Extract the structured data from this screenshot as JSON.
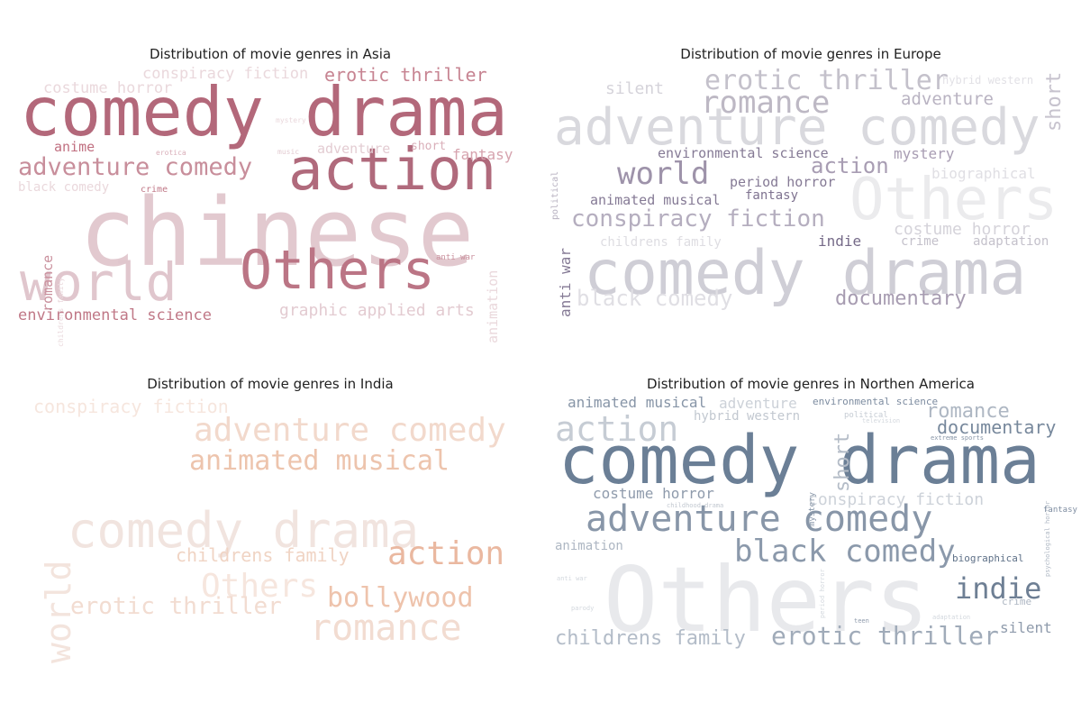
{
  "chart_data": [
    {
      "type": "wordcloud",
      "title": "Distribution of movie genres in Asia",
      "colors": {
        "base": "#b05a6e"
      },
      "words": [
        {
          "text": "chinese",
          "color": "#e2c9cf"
        },
        {
          "text": "comedy drama",
          "color": "#b3687a"
        },
        {
          "text": "action",
          "color": "#b06a7c"
        },
        {
          "text": "Others",
          "color": "#bb7585"
        },
        {
          "text": "world",
          "color": "#e0c6cd"
        },
        {
          "text": "adventure comedy",
          "color": "#c88e9b"
        },
        {
          "text": "erotic thriller",
          "color": "#c78492"
        },
        {
          "text": "conspiracy fiction",
          "color": "#ead8dc"
        },
        {
          "text": "costume horror",
          "color": "#ead8dc"
        },
        {
          "text": "fantasy",
          "color": "#d6a3ae"
        },
        {
          "text": "anime",
          "color": "#c06f80"
        },
        {
          "text": "adventure",
          "color": "#e3ccd2"
        },
        {
          "text": "short",
          "color": "#d9aeb8"
        },
        {
          "text": "black comedy",
          "color": "#ead8dc"
        },
        {
          "text": "romance",
          "color": "#c98f9c"
        },
        {
          "text": "environmental science",
          "color": "#c07887"
        },
        {
          "text": "graphic applied arts",
          "color": "#e3cbd1"
        },
        {
          "text": "animation",
          "color": "#ead8dc"
        },
        {
          "text": "crime",
          "color": "#c07887"
        },
        {
          "text": "mystery",
          "color": "#ead8dc"
        },
        {
          "text": "erotica",
          "color": "#d9aeb8"
        },
        {
          "text": "music",
          "color": "#e3ccd2"
        },
        {
          "text": "childrens family",
          "color": "#ead8dc"
        },
        {
          "text": "anti war",
          "color": "#c98f9c"
        }
      ]
    },
    {
      "type": "wordcloud",
      "title": "Distribution of movie genres in Europe",
      "colors": {
        "base": "#7b6e8a"
      },
      "words": [
        {
          "text": "adventure comedy",
          "color": "#d9d9de"
        },
        {
          "text": "comedy drama",
          "color": "#cfced6"
        },
        {
          "text": "Others",
          "color": "#ebebed"
        },
        {
          "text": "erotic thriller",
          "color": "#c4c1cb"
        },
        {
          "text": "romance",
          "color": "#bdb8c4"
        },
        {
          "text": "world",
          "color": "#9e93aa"
        },
        {
          "text": "action",
          "color": "#a89db3"
        },
        {
          "text": "conspiracy fiction",
          "color": "#b5aebf"
        },
        {
          "text": "documentary",
          "color": "#a79cb1"
        },
        {
          "text": "adventure",
          "color": "#b9b3c2"
        },
        {
          "text": "short",
          "color": "#c7c3ce"
        },
        {
          "text": "silent",
          "color": "#d5d3da"
        },
        {
          "text": "hybrid western",
          "color": "#e2e1e6"
        },
        {
          "text": "environmental science",
          "color": "#857a95"
        },
        {
          "text": "mystery",
          "color": "#a89db3"
        },
        {
          "text": "biographical",
          "color": "#e0dfe4"
        },
        {
          "text": "period horror",
          "color": "#857a95"
        },
        {
          "text": "animated musical",
          "color": "#857a95"
        },
        {
          "text": "fantasy",
          "color": "#7f7390"
        },
        {
          "text": "costume horror",
          "color": "#d5d3da"
        },
        {
          "text": "indie",
          "color": "#756a88"
        },
        {
          "text": "crime",
          "color": "#c4c1cb"
        },
        {
          "text": "adaptation",
          "color": "#c4c1cb"
        },
        {
          "text": "childrens family",
          "color": "#dedde2"
        },
        {
          "text": "black comedy",
          "color": "#e0dfe4"
        },
        {
          "text": "anti war",
          "color": "#857a95"
        },
        {
          "text": "political",
          "color": "#b9b3c2"
        }
      ]
    },
    {
      "type": "wordcloud",
      "title": "Distribution of movie genres in India",
      "colors": {
        "base": "#e0a080"
      },
      "words": [
        {
          "text": "comedy drama",
          "color": "#f1e4df"
        },
        {
          "text": "adventure comedy",
          "color": "#f2d9cc"
        },
        {
          "text": "animated musical",
          "color": "#edc4ad"
        },
        {
          "text": "conspiracy fiction",
          "color": "#f6e6de"
        },
        {
          "text": "action",
          "color": "#eab8a0"
        },
        {
          "text": "childrens family",
          "color": "#f0d4c4"
        },
        {
          "text": "Others",
          "color": "#f6e6de"
        },
        {
          "text": "bollywood",
          "color": "#eec3ac"
        },
        {
          "text": "erotic thriller",
          "color": "#f2dcd1"
        },
        {
          "text": "romance",
          "color": "#f2dcd1"
        },
        {
          "text": "world",
          "color": "#f3e4dd"
        }
      ]
    },
    {
      "type": "wordcloud",
      "title": "Distribution of movie genres in Northen America",
      "colors": {
        "base": "#5f7690"
      },
      "words": [
        {
          "text": "Others",
          "color": "#e8e9ec"
        },
        {
          "text": "comedy drama",
          "color": "#6b7f96"
        },
        {
          "text": "adventure comedy",
          "color": "#8896a8"
        },
        {
          "text": "action",
          "color": "#c6ccd4"
        },
        {
          "text": "black comedy",
          "color": "#8b99ab"
        },
        {
          "text": "erotic thriller",
          "color": "#a0abb9"
        },
        {
          "text": "indie",
          "color": "#6e7f94"
        },
        {
          "text": "childrens family",
          "color": "#b3bcc8"
        },
        {
          "text": "romance",
          "color": "#aeb7c3"
        },
        {
          "text": "documentary",
          "color": "#77889c"
        },
        {
          "text": "short",
          "color": "#b4bcc7"
        },
        {
          "text": "costume horror",
          "color": "#8f9bac"
        },
        {
          "text": "conspiracy fiction",
          "color": "#cdd2d9"
        },
        {
          "text": "animated musical",
          "color": "#8795a7"
        },
        {
          "text": "adventure",
          "color": "#ccd1d8"
        },
        {
          "text": "environmental science",
          "color": "#7d8ca0"
        },
        {
          "text": "hybrid western",
          "color": "#c2c8d0"
        },
        {
          "text": "animation",
          "color": "#aeb7c3"
        },
        {
          "text": "silent",
          "color": "#8f9bac"
        },
        {
          "text": "biographical",
          "color": "#5f7188"
        },
        {
          "text": "crime",
          "color": "#aeb7c3"
        },
        {
          "text": "mystery",
          "color": "#8795a7"
        },
        {
          "text": "fantasy",
          "color": "#7d8ca0"
        },
        {
          "text": "political",
          "color": "#c6ccd4"
        },
        {
          "text": "television",
          "color": "#d3d8de"
        },
        {
          "text": "extreme sports",
          "color": "#8795a7"
        },
        {
          "text": "childhood drama",
          "color": "#c2c8d0"
        },
        {
          "text": "period horror",
          "color": "#d3d8de"
        },
        {
          "text": "psychological horror",
          "color": "#aeb7c3"
        },
        {
          "text": "anti war",
          "color": "#d3d8de"
        },
        {
          "text": "parody",
          "color": "#d3d8de"
        },
        {
          "text": "teen",
          "color": "#8f9bac"
        },
        {
          "text": "adaptation",
          "color": "#d3d8de"
        }
      ]
    }
  ]
}
